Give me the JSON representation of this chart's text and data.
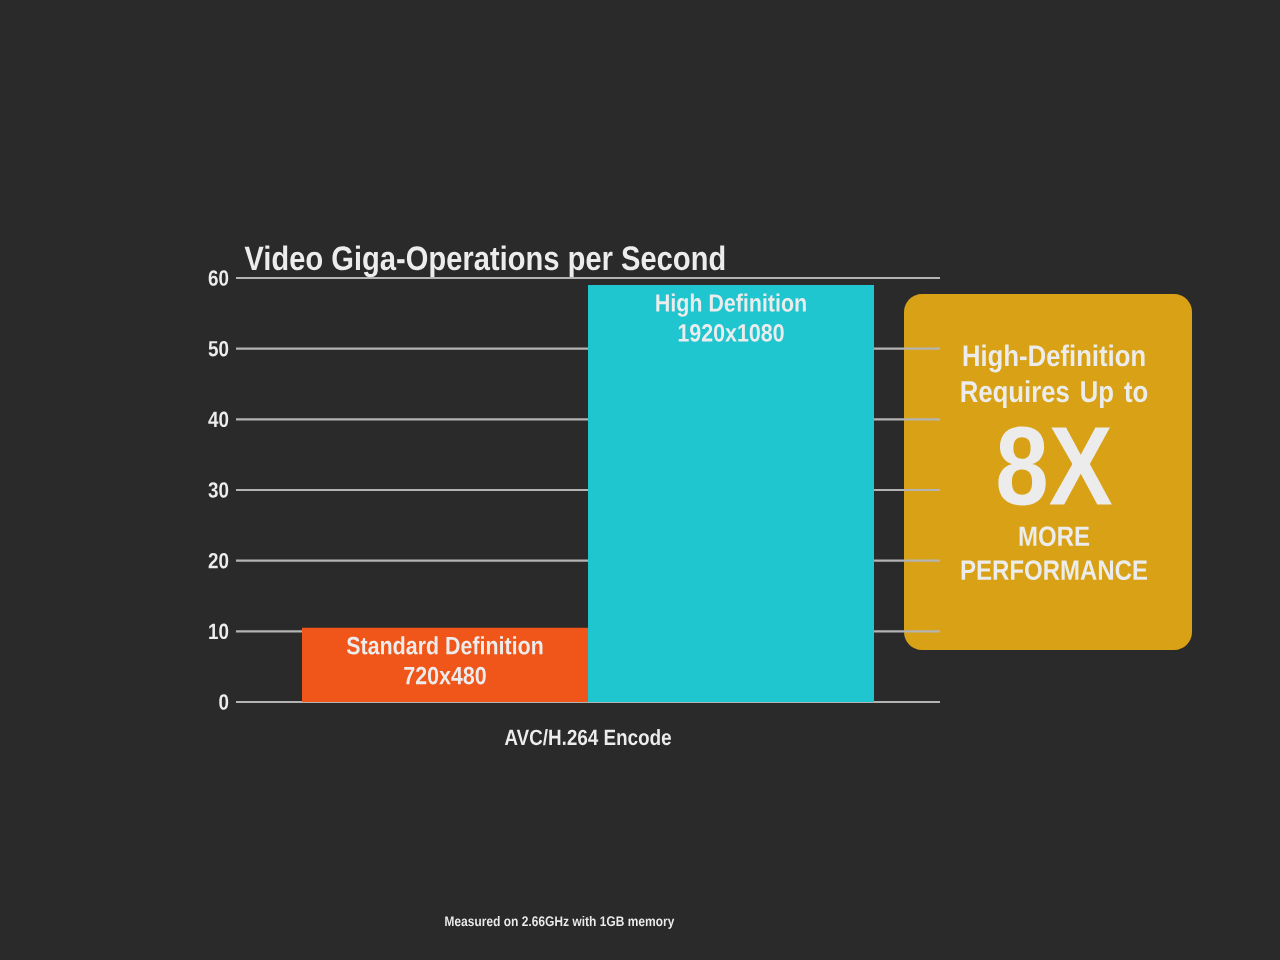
{
  "chart_data": {
    "type": "bar",
    "title": "Video Giga-Operations per Second",
    "categories": [
      "AVC/H.264 Encode"
    ],
    "series": [
      {
        "name": "Standard Definition 720x480",
        "color": "#f0561a",
        "values": [
          10.5
        ]
      },
      {
        "name": "High Definition 1920x1080",
        "color": "#1fc6cf",
        "values": [
          59
        ]
      }
    ],
    "ylim": [
      0,
      60
    ],
    "yticks": [
      0,
      10,
      20,
      30,
      40,
      50,
      60
    ],
    "grid": "y",
    "annotations": [
      "High-Definition Requires Up to",
      "8X",
      "MORE PERFORMANCE",
      "Measured on 2.66GHz with 1GB memory"
    ]
  }
}
